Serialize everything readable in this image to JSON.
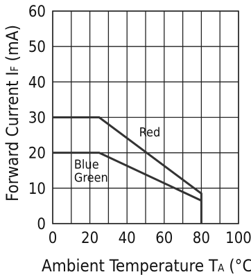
{
  "chart_data": {
    "type": "line",
    "xlabel_main": "Ambient Temperature T",
    "xlabel_sub": "A",
    "xlabel_unit": " (°C",
    "ylabel_main": "Forward Current I",
    "ylabel_sub": "F",
    "ylabel_unit": " (mA)",
    "xlim": [
      0,
      100
    ],
    "ylim": [
      0,
      60
    ],
    "x_ticks": [
      0,
      10,
      20,
      30,
      40,
      50,
      60,
      70,
      80,
      90,
      100
    ],
    "x_tick_labels": [
      "0",
      "",
      "20",
      "",
      "40",
      "",
      "60",
      "",
      "80",
      "",
      "100"
    ],
    "y_ticks": [
      0,
      10,
      20,
      30,
      40,
      50,
      60
    ],
    "y_tick_labels": [
      "0",
      "10",
      "20",
      "30",
      "40",
      "50",
      "60"
    ],
    "grid": true,
    "series": [
      {
        "name": "Red",
        "label_lines": [
          "Red"
        ],
        "x": [
          0,
          25,
          80,
          80
        ],
        "y": [
          30,
          30,
          8.5,
          0
        ]
      },
      {
        "name": "Blue Green",
        "label_lines": [
          "Blue",
          "Green"
        ],
        "x": [
          0,
          25,
          80
        ],
        "y": [
          20,
          20,
          6.5
        ]
      }
    ],
    "colors": {
      "line": "#333333",
      "grid": "#222222",
      "text": "#111111"
    }
  }
}
